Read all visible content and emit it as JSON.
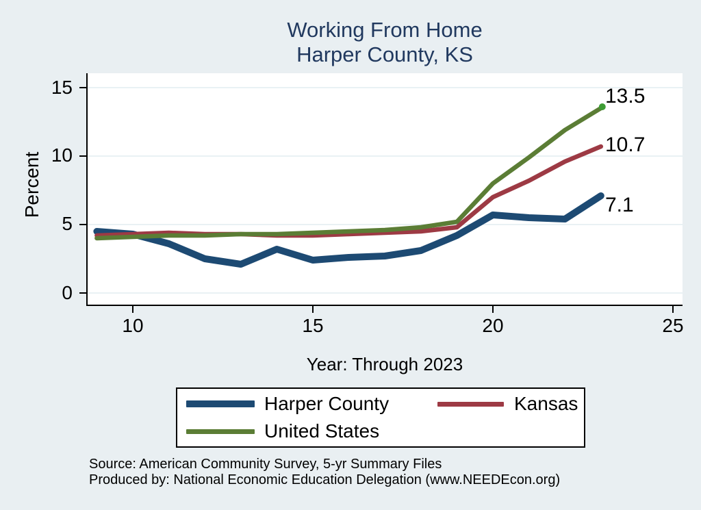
{
  "title": {
    "line1": "Working From Home",
    "line2": "Harper County, KS"
  },
  "colors": {
    "background": "#e9eff2",
    "plot_background": "#ffffff",
    "title_text": "#21395f",
    "gridline": "#e6eff2",
    "axis": "#000000",
    "harper_county": "#1d4a73",
    "kansas": "#9d3a44",
    "united_states": "#5b7d35",
    "end_marker": "#3e9c35"
  },
  "chart_data": {
    "type": "line",
    "x": [
      9,
      10,
      11,
      12,
      13,
      14,
      15,
      16,
      17,
      18,
      19,
      20,
      21,
      22,
      23
    ],
    "series": [
      {
        "name": "Harper County",
        "color": "#1d4a73",
        "line_width": 10,
        "values": [
          4.5,
          4.3,
          3.6,
          2.5,
          2.1,
          3.2,
          2.4,
          2.6,
          2.7,
          3.1,
          4.2,
          5.7,
          5.5,
          5.4,
          7.1
        ],
        "end_label": "7.1",
        "end_marker": false
      },
      {
        "name": "Kansas",
        "color": "#9d3a44",
        "line_width": 6.5,
        "values": [
          4.2,
          4.3,
          4.4,
          4.3,
          4.3,
          4.2,
          4.2,
          4.3,
          4.4,
          4.5,
          4.8,
          7.0,
          8.2,
          9.6,
          10.7
        ],
        "end_label": "10.7",
        "end_marker": false
      },
      {
        "name": "United States",
        "color": "#5b7d35",
        "line_width": 6.5,
        "values": [
          4.0,
          4.1,
          4.2,
          4.2,
          4.3,
          4.3,
          4.4,
          4.5,
          4.6,
          4.8,
          5.2,
          8.0,
          9.9,
          11.9,
          13.5
        ],
        "end_label": "13.5",
        "end_marker": true
      }
    ],
    "title": "Working From Home Harper County, KS",
    "xlabel": "Year: Through 2023",
    "ylabel": "Percent",
    "x_ticks": [
      "10",
      "15",
      "20",
      "25"
    ],
    "y_ticks": [
      "15",
      "10",
      "5",
      "0"
    ],
    "xlim": [
      8.7,
      25.3
    ],
    "ylim": [
      0,
      15
    ],
    "grid": true,
    "legend_position": "bottom"
  },
  "legend": {
    "items": [
      {
        "label": "Harper County"
      },
      {
        "label": "Kansas"
      },
      {
        "label": "United States"
      }
    ]
  },
  "footer": {
    "source": "Source: American Community Survey, 5-yr Summary Files",
    "produced_by": "Produced by: National Economic Education Delegation (www.NEEDEcon.org)"
  }
}
